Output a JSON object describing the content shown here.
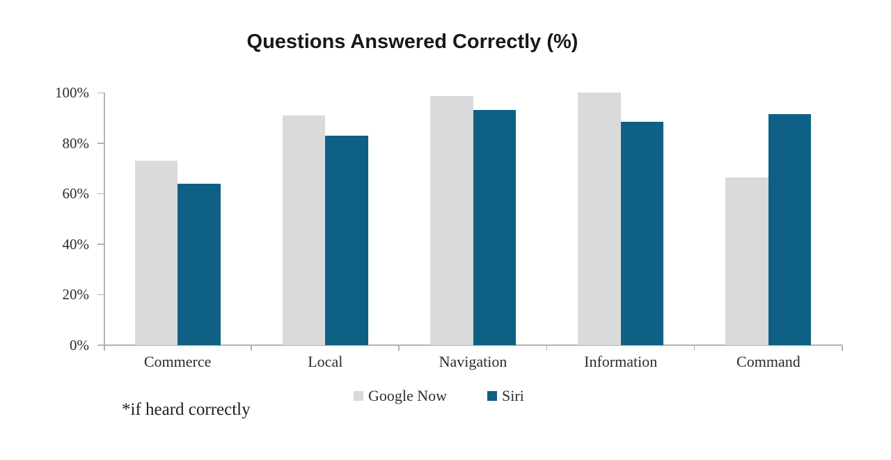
{
  "title": "Questions Answered Correctly (%)",
  "footnote": "*if heard correctly",
  "colors": {
    "google_now": "#d9dadc",
    "siri": "#0e6184",
    "axis": "#b2b2b3",
    "title_text": "#181818",
    "label_text": "#2b2b2b"
  },
  "chart_data": {
    "type": "bar",
    "title": "Questions Answered Correctly (%)",
    "categories": [
      "Commerce",
      "Local",
      "Navigation",
      "Information",
      "Command"
    ],
    "series": [
      {
        "name": "Google Now",
        "color": "#d9dadc",
        "values": [
          73,
          91,
          98.5,
          100,
          66.5
        ]
      },
      {
        "name": "Siri",
        "color": "#0e6184",
        "values": [
          64,
          83,
          93,
          88.5,
          91.5
        ]
      }
    ],
    "xlabel": "",
    "ylabel": "",
    "ylim": [
      0,
      100
    ],
    "yticks": [
      0,
      20,
      40,
      60,
      80,
      100
    ],
    "ytick_suffix": "%",
    "grid": false,
    "legend_position": "bottom",
    "annotations": [
      "*if heard correctly"
    ]
  }
}
